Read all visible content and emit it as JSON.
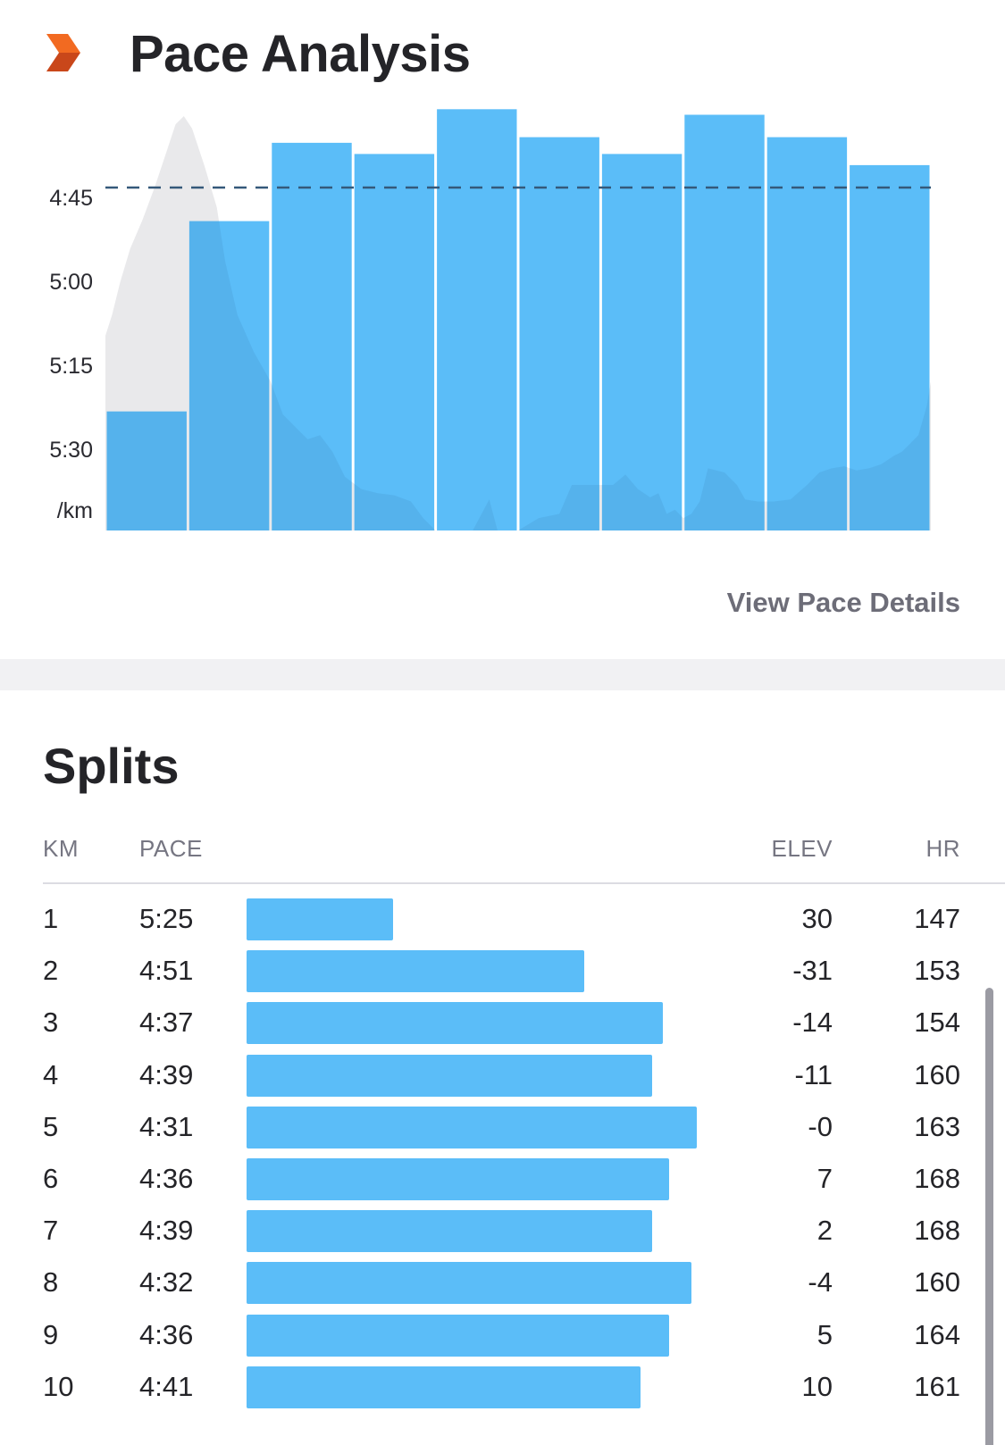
{
  "header": {
    "title": "Pace Analysis",
    "logo_icon": "strava-chevron-icon",
    "accent": "#fc5200"
  },
  "pace_link": "View Pace Details",
  "chart_data": {
    "type": "bar",
    "title": "",
    "xlabel": "",
    "ylabel": "/km",
    "y_ticks": [
      "4:45",
      "5:00",
      "5:15",
      "5:30"
    ],
    "y_unit_label": "/km",
    "y_axis": "pace (min:sec per km), inverted – faster at top",
    "reference_line": "4:45",
    "categories": [
      "1",
      "2",
      "3",
      "4",
      "5",
      "6",
      "7",
      "8",
      "9",
      "10"
    ],
    "values": [
      "5:25",
      "4:51",
      "4:37",
      "4:39",
      "4:31",
      "4:36",
      "4:39",
      "4:32",
      "4:36",
      "4:41"
    ],
    "values_seconds": [
      325,
      291,
      277,
      279,
      271,
      276,
      279,
      272,
      276,
      281
    ],
    "bar_color": "#5bbdf8",
    "elevation_color": "#e9e9eb",
    "grid": false
  },
  "splits": {
    "title": "Splits",
    "columns": {
      "km": "KM",
      "pace": "PACE",
      "elev": "ELEV",
      "hr": "HR"
    },
    "rows": [
      {
        "km": "1",
        "pace": "5:25",
        "elev": "30",
        "hr": "147",
        "pace_seconds": 325
      },
      {
        "km": "2",
        "pace": "4:51",
        "elev": "-31",
        "hr": "153",
        "pace_seconds": 291
      },
      {
        "km": "3",
        "pace": "4:37",
        "elev": "-14",
        "hr": "154",
        "pace_seconds": 277
      },
      {
        "km": "4",
        "pace": "4:39",
        "elev": "-11",
        "hr": "160",
        "pace_seconds": 279
      },
      {
        "km": "5",
        "pace": "4:31",
        "elev": "-0",
        "hr": "163",
        "pace_seconds": 271
      },
      {
        "km": "6",
        "pace": "4:36",
        "elev": "7",
        "hr": "168",
        "pace_seconds": 276
      },
      {
        "km": "7",
        "pace": "4:39",
        "elev": "2",
        "hr": "168",
        "pace_seconds": 279
      },
      {
        "km": "8",
        "pace": "4:32",
        "elev": "-4",
        "hr": "160",
        "pace_seconds": 272
      },
      {
        "km": "9",
        "pace": "4:36",
        "elev": "5",
        "hr": "164",
        "pace_seconds": 276
      },
      {
        "km": "10",
        "pace": "4:41",
        "elev": "10",
        "hr": "161",
        "pace_seconds": 281
      }
    ]
  }
}
